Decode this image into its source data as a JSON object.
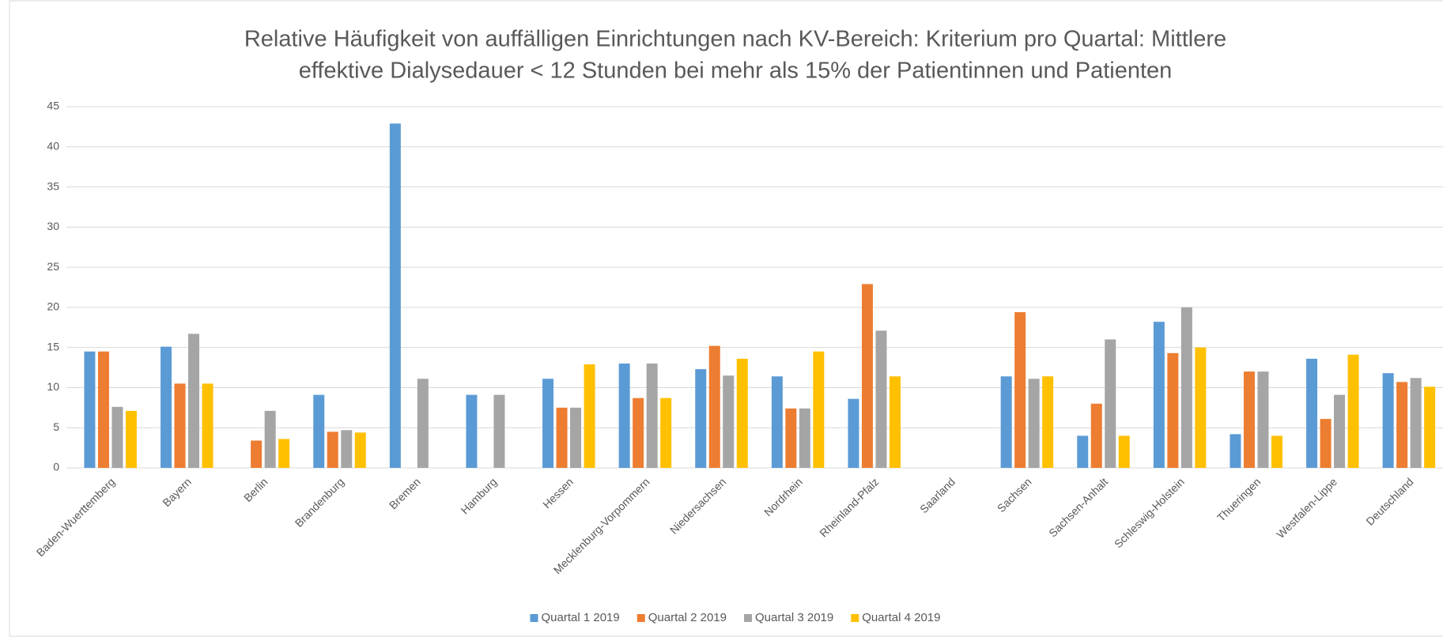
{
  "chart_data": {
    "type": "bar",
    "title": [
      "Relative Häufigkeit von auffälligen Einrichtungen nach KV-Bereich: Kriterium pro Quartal: Mittlere",
      "effektive Dialysedauer < 12 Stunden bei mehr als 15% der Patientinnen und Patienten"
    ],
    "categories": [
      "Baden-Wuerttemberg",
      "Bayern",
      "Berlin",
      "Brandenburg",
      "Bremen",
      "Hamburg",
      "Hessen",
      "Mecklenburg-Vorpommern",
      "Niedersachsen",
      "Nordrhein",
      "Rheinland-Pfalz",
      "Saarland",
      "Sachsen",
      "Sachsen-Anhalt",
      "Schleswig-Holstein",
      "Thueringen",
      "Westfalen-Lippe",
      "Deutschland"
    ],
    "series": [
      {
        "name": "Quartal 1 2019",
        "color": "#5b9bd5",
        "values": [
          14.5,
          15.1,
          0,
          9.1,
          42.9,
          9.1,
          11.1,
          13.0,
          12.3,
          11.4,
          8.6,
          0,
          11.4,
          4.0,
          18.2,
          4.2,
          13.6,
          11.8
        ]
      },
      {
        "name": "Quartal 2 2019",
        "color": "#ed7d31",
        "values": [
          14.5,
          10.5,
          3.4,
          4.5,
          0,
          0,
          7.5,
          8.7,
          15.2,
          7.4,
          22.9,
          0,
          19.4,
          8.0,
          14.3,
          12.0,
          6.1,
          10.7
        ]
      },
      {
        "name": "Quartal 3 2019",
        "color": "#a5a5a5",
        "values": [
          7.6,
          16.7,
          7.1,
          4.7,
          11.1,
          9.1,
          7.5,
          13.0,
          11.5,
          7.4,
          17.1,
          0,
          11.1,
          16.0,
          20.0,
          12.0,
          9.1,
          11.2
        ]
      },
      {
        "name": "Quartal 4 2019",
        "color": "#ffc000",
        "values": [
          7.1,
          10.5,
          3.6,
          4.4,
          0,
          0,
          12.9,
          8.7,
          13.6,
          14.5,
          11.4,
          0,
          11.4,
          4.0,
          15.0,
          4.0,
          14.1,
          10.1
        ]
      }
    ],
    "ylim": [
      0,
      45
    ],
    "yticks": [
      0,
      5,
      10,
      15,
      20,
      25,
      30,
      35,
      40,
      45
    ],
    "grid": true,
    "legend": "bottom"
  }
}
